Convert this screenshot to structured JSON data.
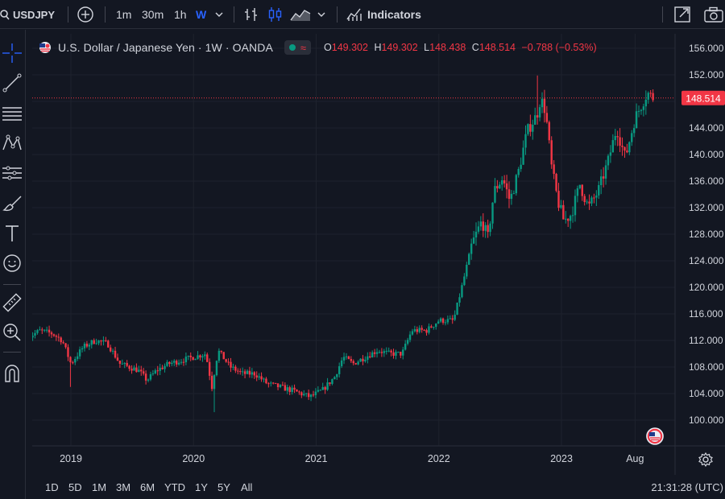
{
  "toolbar": {
    "symbol": "USDJPY",
    "intervals": [
      "1m",
      "30m",
      "1h",
      "W"
    ],
    "active_interval": "W",
    "indicators_label": "Indicators"
  },
  "legend": {
    "title": "U.S. Dollar / Japanese Yen · 1W · OANDA",
    "open_k": "O",
    "open": "149.302",
    "high_k": "H",
    "high": "149.302",
    "low_k": "L",
    "low": "148.438",
    "close_k": "C",
    "close": "148.514",
    "change": "−0.788 (−0.53%)"
  },
  "price_tag": "148.514",
  "colors": {
    "up": "#089981",
    "down": "#f23645",
    "background": "#131722",
    "accent": "#2962ff"
  },
  "bottom": {
    "ranges": [
      "1D",
      "5D",
      "1M",
      "3M",
      "6M",
      "YTD",
      "1Y",
      "5Y",
      "All"
    ],
    "clock": "21:31:28 (UTC)"
  },
  "chart_data": {
    "type": "candlestick",
    "symbol": "USDJPY",
    "interval": "1W",
    "y_ticks": [
      "156.000",
      "152.000",
      "148.000",
      "144.000",
      "140.000",
      "136.000",
      "132.000",
      "128.000",
      "124.000",
      "120.000",
      "116.000",
      "112.000",
      "108.000",
      "104.000",
      "100.000"
    ],
    "ylim": [
      96.0,
      158.0
    ],
    "x_ticks": [
      "2019",
      "2020",
      "2021",
      "2022",
      "2023",
      "Aug"
    ],
    "last_price": 148.514,
    "grid": true,
    "anchors": [
      {
        "t": 2018.65,
        "p": 112.5
      },
      {
        "t": 2018.75,
        "p": 113.5
      },
      {
        "t": 2018.85,
        "p": 113.0
      },
      {
        "t": 2018.93,
        "p": 112.0
      },
      {
        "t": 2019.0,
        "p": 108.5
      },
      {
        "t": 2019.1,
        "p": 111.0
      },
      {
        "t": 2019.2,
        "p": 112.0
      },
      {
        "t": 2019.3,
        "p": 111.5
      },
      {
        "t": 2019.4,
        "p": 108.5
      },
      {
        "t": 2019.55,
        "p": 107.5
      },
      {
        "t": 2019.62,
        "p": 106.0
      },
      {
        "t": 2019.7,
        "p": 107.5
      },
      {
        "t": 2019.8,
        "p": 108.5
      },
      {
        "t": 2019.9,
        "p": 109.0
      },
      {
        "t": 2020.0,
        "p": 109.5
      },
      {
        "t": 2020.1,
        "p": 110.0
      },
      {
        "t": 2020.15,
        "p": 105.0
      },
      {
        "t": 2020.2,
        "p": 110.5
      },
      {
        "t": 2020.3,
        "p": 108.0
      },
      {
        "t": 2020.4,
        "p": 107.0
      },
      {
        "t": 2020.5,
        "p": 107.0
      },
      {
        "t": 2020.6,
        "p": 105.5
      },
      {
        "t": 2020.7,
        "p": 105.0
      },
      {
        "t": 2020.8,
        "p": 104.5
      },
      {
        "t": 2020.95,
        "p": 103.5
      },
      {
        "t": 2021.05,
        "p": 104.5
      },
      {
        "t": 2021.15,
        "p": 106.5
      },
      {
        "t": 2021.22,
        "p": 109.5
      },
      {
        "t": 2021.3,
        "p": 108.5
      },
      {
        "t": 2021.4,
        "p": 109.5
      },
      {
        "t": 2021.5,
        "p": 110.5
      },
      {
        "t": 2021.6,
        "p": 110.0
      },
      {
        "t": 2021.7,
        "p": 110.0
      },
      {
        "t": 2021.78,
        "p": 113.5
      },
      {
        "t": 2021.9,
        "p": 113.5
      },
      {
        "t": 2022.0,
        "p": 115.0
      },
      {
        "t": 2022.12,
        "p": 115.0
      },
      {
        "t": 2022.2,
        "p": 121.0
      },
      {
        "t": 2022.27,
        "p": 126.5
      },
      {
        "t": 2022.35,
        "p": 130.0
      },
      {
        "t": 2022.4,
        "p": 127.5
      },
      {
        "t": 2022.45,
        "p": 134.5
      },
      {
        "t": 2022.52,
        "p": 136.5
      },
      {
        "t": 2022.58,
        "p": 133.0
      },
      {
        "t": 2022.65,
        "p": 137.5
      },
      {
        "t": 2022.72,
        "p": 143.5
      },
      {
        "t": 2022.8,
        "p": 146.0
      },
      {
        "t": 2022.83,
        "p": 148.5
      },
      {
        "t": 2022.87,
        "p": 146.5
      },
      {
        "t": 2022.92,
        "p": 138.0
      },
      {
        "t": 2022.97,
        "p": 133.0
      },
      {
        "t": 2023.02,
        "p": 130.0
      },
      {
        "t": 2023.08,
        "p": 131.0
      },
      {
        "t": 2023.15,
        "p": 135.5
      },
      {
        "t": 2023.22,
        "p": 132.0
      },
      {
        "t": 2023.3,
        "p": 134.5
      },
      {
        "t": 2023.38,
        "p": 139.0
      },
      {
        "t": 2023.45,
        "p": 144.0
      },
      {
        "t": 2023.52,
        "p": 139.5
      },
      {
        "t": 2023.6,
        "p": 145.5
      },
      {
        "t": 2023.7,
        "p": 149.3
      },
      {
        "t": 2023.75,
        "p": 148.5
      }
    ]
  }
}
